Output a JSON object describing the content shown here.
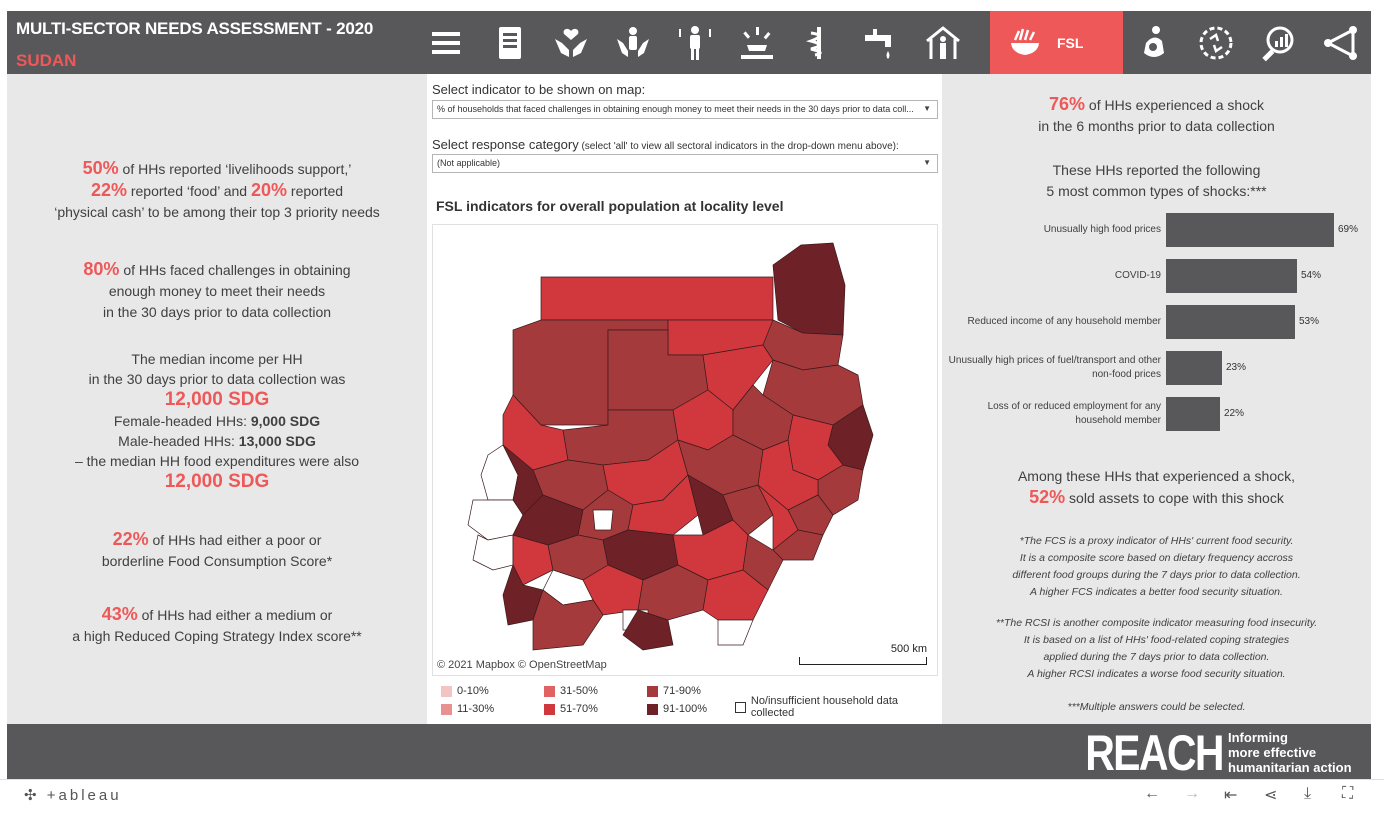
{
  "header": {
    "title": "MULTI-SECTOR NEEDS ASSESSMENT - 2020",
    "subtitle": "SUDAN",
    "nav_icons": [
      "menu-icon",
      "document-icon",
      "hands-heart-icon",
      "protection-icon",
      "health-icon",
      "shelter-light-icon",
      "medicine-icon",
      "water-tap-icon",
      "house-person-icon",
      "food-bowl-icon",
      "nutrition-icon",
      "recycle-icon",
      "search-chart-icon",
      "share-icon"
    ],
    "active_label": "FSL"
  },
  "left": {
    "s1_pct1": "50%",
    "s1_t1": " of HHs reported ‘livelihoods support,’",
    "s1_pct2": "22%",
    "s1_t2": " reported ‘food’ and ",
    "s1_pct3": "20%",
    "s1_t3": " reported",
    "s1_t4": "‘physical cash’ to be among their top 3 priority needs",
    "s2_pct": "80%",
    "s2_t1": " of HHs faced challenges in obtaining",
    "s2_t2": "enough money to meet their needs",
    "s2_t3": "in the 30 days prior to data collection",
    "s3_t1": "The median income per HH",
    "s3_t2": "in the 30 days prior to data collection was",
    "s3_big1": "12,000 SDG",
    "s3_f_label": "Female-headed HHs: ",
    "s3_f_val": "9,000 SDG",
    "s3_m_label": "Male-headed HHs: ",
    "s3_m_val": "13,000 SDG",
    "s3_t3": "– the median HH food expenditures were also",
    "s3_big2": "12,000 SDG",
    "s4_pct": "22%",
    "s4_t1": " of HHs had either a poor or",
    "s4_t2": "borderline Food Consumption Score*",
    "s5_pct": "43%",
    "s5_t1": " of HHs had either a medium or",
    "s5_t2": "a high Reduced Coping Strategy Index score**"
  },
  "center": {
    "indicator_label": "Select indicator to be shown on map:",
    "indicator_value": "% of households that faced challenges in obtaining enough money to meet their needs in the 30 days prior to data coll...",
    "response_label": "Select response category",
    "response_hint": " (select 'all' to view all sectoral indicators in the drop-down menu above):",
    "response_value": "(Not applicable)",
    "map_title": "FSL indicators for overall population at locality level",
    "map_credit": "© 2021 Mapbox  © OpenStreetMap",
    "scale_label": "500 km",
    "legend": [
      {
        "label": "0-10%",
        "color": "#f2c4c4"
      },
      {
        "label": "11-30%",
        "color": "#e99090"
      },
      {
        "label": "31-50%",
        "color": "#e06262"
      },
      {
        "label": "51-70%",
        "color": "#d0383d"
      },
      {
        "label": "71-90%",
        "color": "#a53a3c"
      },
      {
        "label": "91-100%",
        "color": "#6e2228"
      }
    ],
    "legend_nodata": "No/insufficient household data collected"
  },
  "right": {
    "shock_pct": "76%",
    "shock_t1": " of HHs experienced a shock",
    "shock_t2": "in the 6 months prior to data collection",
    "types_t1": "These HHs reported the following",
    "types_t2": "5 most common types of shocks:***",
    "assets_t1": "Among these HHs that experienced a shock,",
    "assets_pct": "52%",
    "assets_t2": " sold assets to cope with this shock",
    "note1": [
      "*The FCS is a proxy indicator of HHs' current food security.",
      "It is a composite score based on dietary frequency accross",
      "different food groups during the 7 days prior to data collection.",
      "A higher FCS indicates a better food security situation."
    ],
    "note2": [
      "**The RCSI is another composite indicator measuring food insecurity.",
      "It is based on a list of HHs' food-related coping strategies",
      "applied during the 7 days prior to data collection.",
      "A higher RCSI indicates a worse food security situation."
    ],
    "note3": "***Multiple answers could be selected."
  },
  "chart_data": {
    "type": "bar",
    "categories": [
      "Unusually high food prices",
      "COVID-19",
      "Reduced income of any household member",
      "Unusually high prices of fuel/transport and other non-food prices",
      "Loss of or reduced employment for any household member"
    ],
    "category_lines": [
      [
        "Unusually high food prices"
      ],
      [
        "COVID-19"
      ],
      [
        "Reduced income of any household member"
      ],
      [
        "Unusually high prices of fuel/transport and other",
        "non-food prices"
      ],
      [
        "Loss of or reduced employment for any",
        "household member"
      ]
    ],
    "values": [
      69,
      54,
      53,
      23,
      22
    ],
    "labels": [
      "69%",
      "54%",
      "53%",
      "23%",
      "22%"
    ],
    "orientation": "horizontal",
    "xlim": [
      0,
      69
    ],
    "color": "#58585a"
  },
  "footer": {
    "logo": "REACH",
    "tagline": [
      "Informing",
      "more effective",
      "humanitarian action"
    ]
  },
  "tableau": {
    "logo": "+ableau"
  }
}
